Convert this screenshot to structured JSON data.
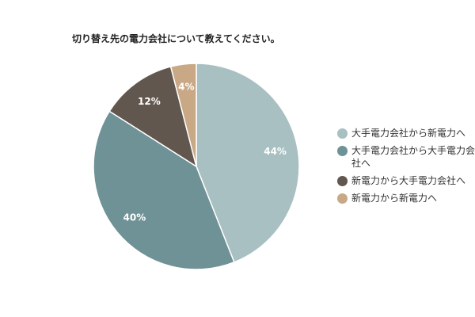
{
  "chart_data": {
    "type": "pie",
    "title": "切り替え先の電力会社について教えてください。",
    "categories": [
      "大手電力会社から新電力へ",
      "大手電力会社から大手電力会社へ",
      "新電力から大手電力会社へ",
      "新電力から新電力へ"
    ],
    "values": [
      44,
      40,
      12,
      4
    ],
    "value_labels": [
      "44%",
      "40%",
      "12%",
      "4%"
    ],
    "colors": [
      "#a8c0c2",
      "#6f9296",
      "#62574f",
      "#c9a886"
    ],
    "legend_position": "right",
    "start_angle": "12 o'clock",
    "direction": "clockwise"
  }
}
